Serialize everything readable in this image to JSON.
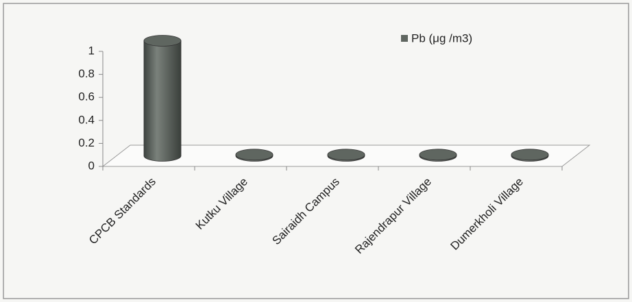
{
  "chart_data": {
    "type": "bar3d",
    "categories": [
      "CPCB Standards",
      "Kutku Village",
      "Sairaidh Campus",
      "Rajendrapur Village",
      "Dumerkholi Village"
    ],
    "series": [
      {
        "name": "Pb (μg /m3)",
        "color": "#5f6660",
        "values": [
          1,
          0.01,
          0.01,
          0.01,
          0.01
        ]
      }
    ],
    "ylim": [
      0,
      1
    ],
    "yticks": [
      0,
      0.2,
      0.4,
      0.6,
      0.8,
      1
    ],
    "grid": false,
    "legend": "top"
  }
}
